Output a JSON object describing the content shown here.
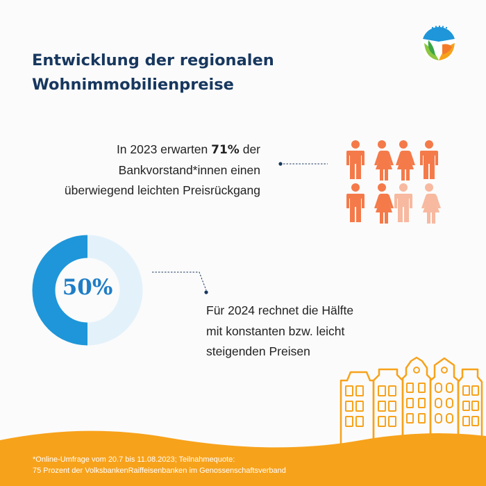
{
  "header": {
    "title_line1": "Entwicklung der regionalen",
    "title_line2": "Wohnimmobilienpreise"
  },
  "stat_2023": {
    "line1_prefix": "In 2023 erwarten ",
    "percent": "71%",
    "line1_suffix": " der",
    "line2": "Bankvorstand*innen einen",
    "line3": "überwiegend leichten Preisrückgang"
  },
  "stat_2024": {
    "line1": "Für 2024 rechnet die Hälfte",
    "line2": "mit konstanten bzw. leicht",
    "line3": "steigenden Preisen"
  },
  "footnote": {
    "line1": "*Online-Umfrage vom 20.7 bis 11.08.2023; Teilnahmequote:",
    "line2": "75 Prozent der VolksbankenRaiffeisenbanken im Genossenschaftsverband"
  },
  "chart_data": [
    {
      "type": "pictogram",
      "total_icons": 8,
      "highlighted_icons": 6,
      "value_percent": 71,
      "icons": [
        "male",
        "female",
        "female",
        "male",
        "male",
        "female",
        "male",
        "female"
      ],
      "colors": {
        "highlight": "#f47a4a",
        "muted": "#f7b9a0"
      }
    },
    {
      "type": "pie",
      "donut": true,
      "label": "50%",
      "values": [
        50,
        50
      ],
      "colors": [
        "#1e96d9",
        "#e3f1fa"
      ]
    }
  ],
  "colors": {
    "title": "#17375e",
    "accent_blue": "#1e96d9",
    "accent_orange": "#f7a21b",
    "people_orange": "#f47a4a"
  }
}
